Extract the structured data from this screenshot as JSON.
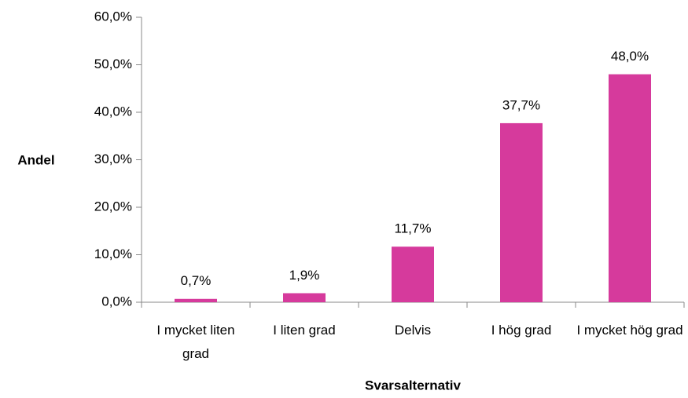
{
  "chart_data": {
    "type": "bar",
    "categories": [
      "I mycket liten grad",
      "I liten grad",
      "Delvis",
      "I hög grad",
      "I mycket hög grad"
    ],
    "values": [
      0.7,
      1.9,
      11.7,
      37.7,
      48.0
    ],
    "value_labels": [
      "0,7%",
      "1,9%",
      "11,7%",
      "37,7%",
      "48,0%"
    ],
    "color": "#d63a9c",
    "ylim": [
      0,
      60
    ],
    "yticks": [
      {
        "value": 0,
        "label": "0,0%"
      },
      {
        "value": 10,
        "label": "10,0%"
      },
      {
        "value": 20,
        "label": "20,0%"
      },
      {
        "value": 30,
        "label": "30,0%"
      },
      {
        "value": 40,
        "label": "40,0%"
      },
      {
        "value": 50,
        "label": "50,0%"
      },
      {
        "value": 60,
        "label": "60,0%"
      }
    ],
    "x_label": "Svarsalternativ",
    "y_label": "Andel",
    "grid": false
  }
}
